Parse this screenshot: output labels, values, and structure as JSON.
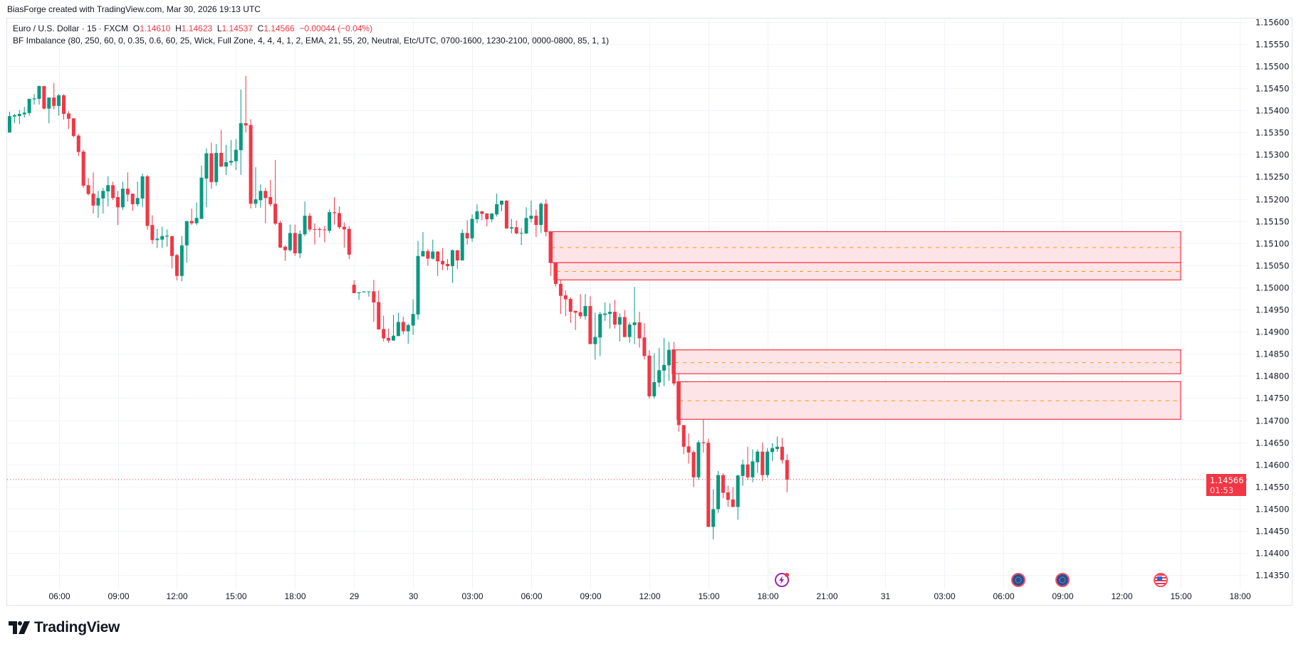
{
  "header": {
    "credit": "BiasForge created with TradingView.com, Mar 30, 2026 19:13 UTC"
  },
  "legend": {
    "symbol": "Euro / U.S. Dollar · 15 · FXCM",
    "open_label": "O",
    "open": "1.14610",
    "high_label": "H",
    "high": "1.14623",
    "low_label": "L",
    "low": "1.14537",
    "close_label": "C",
    "close": "1.14566",
    "change": "−0.00044 (−0.04%)",
    "indicator": "BF Imbalance (80, 250, 60, 0, 0.35, 0.6, 60, 25, Wick, Full Zone, 4, 4, 4, 1, 2, EMA, 21, 55, 20, Neutral, Etc/UTC, 0700-1600, 1230-2100, 0000-0800, 85, 1, 1)"
  },
  "price_tag": {
    "price": "1.14566",
    "countdown": "01:53"
  },
  "logo": {
    "text": "TradingView"
  },
  "colors": {
    "up": "#089981",
    "down": "#f23645",
    "zone_fill": "#fde1e3",
    "zone_border": "#f23645",
    "zone_mid": "#ff9800",
    "grid": "#f0f3fa",
    "event_purple": "#9c27b0"
  },
  "events": [
    {
      "icon": "lightning-icon",
      "bar": 157
    },
    {
      "icon": "eu-flag-icon",
      "bar": 205
    },
    {
      "icon": "eu-flag-icon",
      "bar": 214
    },
    {
      "icon": "us-flag-icon",
      "bar": 234
    }
  ],
  "chart_data": {
    "type": "candlestick",
    "interval": "15",
    "ylim": [
      1.1433,
      1.1561
    ],
    "grid": true,
    "price_ticks": [
      "1.15600",
      "1.15550",
      "1.15500",
      "1.15450",
      "1.15400",
      "1.15350",
      "1.15300",
      "1.15250",
      "1.15200",
      "1.15150",
      "1.15100",
      "1.15050",
      "1.15000",
      "1.14950",
      "1.14900",
      "1.14850",
      "1.14800",
      "1.14750",
      "1.14700",
      "1.14650",
      "1.14600",
      "1.14550",
      "1.14500",
      "1.14450",
      "1.14400",
      "1.14350"
    ],
    "time_ticks": [
      {
        "label": "06:00",
        "bar": 10
      },
      {
        "label": "09:00",
        "bar": 22
      },
      {
        "label": "12:00",
        "bar": 34
      },
      {
        "label": "15:00",
        "bar": 46
      },
      {
        "label": "18:00",
        "bar": 58
      },
      {
        "label": "29",
        "bar": 70
      },
      {
        "label": "30",
        "bar": 82
      },
      {
        "label": "03:00",
        "bar": 94
      },
      {
        "label": "06:00",
        "bar": 106
      },
      {
        "label": "09:00",
        "bar": 118
      },
      {
        "label": "12:00",
        "bar": 130
      },
      {
        "label": "15:00",
        "bar": 142
      },
      {
        "label": "18:00",
        "bar": 154
      },
      {
        "label": "21:00",
        "bar": 166
      },
      {
        "label": "31",
        "bar": 178
      },
      {
        "label": "03:00",
        "bar": 190
      },
      {
        "label": "06:00",
        "bar": 202
      },
      {
        "label": "09:00",
        "bar": 214
      },
      {
        "label": "12:00",
        "bar": 226
      },
      {
        "label": "15:00",
        "bar": 238
      },
      {
        "label": "18:00",
        "bar": 250
      }
    ],
    "last_price": 1.14566,
    "zones": [
      {
        "from_bar": 110,
        "to_bar": 238,
        "top": 1.15126,
        "bottom": 1.15056,
        "mid": 1.1509
      },
      {
        "from_bar": 111,
        "to_bar": 238,
        "top": 1.15056,
        "bottom": 1.15017,
        "mid": 1.15036
      },
      {
        "from_bar": 135,
        "to_bar": 238,
        "top": 1.14859,
        "bottom": 1.14805,
        "mid": 1.1483
      },
      {
        "from_bar": 136,
        "to_bar": 238,
        "top": 1.14787,
        "bottom": 1.14702,
        "mid": 1.14744
      }
    ],
    "ohlc": [
      [
        1.1535,
        1.15397,
        1.1535,
        1.15387
      ],
      [
        1.15386,
        1.15392,
        1.15371,
        1.15389
      ],
      [
        1.15387,
        1.15401,
        1.15369,
        1.15392
      ],
      [
        1.15391,
        1.15408,
        1.15384,
        1.15395
      ],
      [
        1.15394,
        1.15426,
        1.15388,
        1.15426
      ],
      [
        1.15425,
        1.15437,
        1.15413,
        1.15427
      ],
      [
        1.15426,
        1.15456,
        1.15413,
        1.15455
      ],
      [
        1.15455,
        1.15455,
        1.15402,
        1.15404
      ],
      [
        1.15404,
        1.15429,
        1.15371,
        1.15429
      ],
      [
        1.15429,
        1.15462,
        1.15402,
        1.1541
      ],
      [
        1.1541,
        1.15437,
        1.15388,
        1.15434
      ],
      [
        1.15434,
        1.15437,
        1.15379,
        1.15392
      ],
      [
        1.15393,
        1.15398,
        1.15358,
        1.15381
      ],
      [
        1.15382,
        1.15382,
        1.15339,
        1.15342
      ],
      [
        1.15343,
        1.15347,
        1.15297,
        1.15306
      ],
      [
        1.15307,
        1.15311,
        1.15225,
        1.1523
      ],
      [
        1.15231,
        1.15247,
        1.15208,
        1.15211
      ],
      [
        1.15212,
        1.1526,
        1.15167,
        1.15185
      ],
      [
        1.15185,
        1.15218,
        1.15157,
        1.15202
      ],
      [
        1.15201,
        1.15225,
        1.15167,
        1.15218
      ],
      [
        1.15217,
        1.15251,
        1.15183,
        1.15231
      ],
      [
        1.15231,
        1.15239,
        1.15197,
        1.15202
      ],
      [
        1.15204,
        1.15218,
        1.15141,
        1.15181
      ],
      [
        1.15181,
        1.15239,
        1.15175,
        1.15223
      ],
      [
        1.15223,
        1.1526,
        1.15194,
        1.1521
      ],
      [
        1.15212,
        1.15212,
        1.15173,
        1.15188
      ],
      [
        1.15188,
        1.15239,
        1.15183,
        1.15202
      ],
      [
        1.15201,
        1.15257,
        1.15181,
        1.15251
      ],
      [
        1.15251,
        1.15254,
        1.15131,
        1.15139
      ],
      [
        1.15141,
        1.15163,
        1.15098,
        1.15107
      ],
      [
        1.15107,
        1.15132,
        1.15089,
        1.1511
      ],
      [
        1.15108,
        1.15137,
        1.15089,
        1.15116
      ],
      [
        1.15115,
        1.15131,
        1.15092,
        1.15117
      ],
      [
        1.15116,
        1.15116,
        1.15043,
        1.15071
      ],
      [
        1.15073,
        1.15076,
        1.15016,
        1.15026
      ],
      [
        1.15026,
        1.15116,
        1.15014,
        1.15095
      ],
      [
        1.15095,
        1.1515,
        1.15056,
        1.1515
      ],
      [
        1.1515,
        1.15178,
        1.15141,
        1.15145
      ],
      [
        1.15145,
        1.15192,
        1.15141,
        1.15157
      ],
      [
        1.15155,
        1.15275,
        1.15154,
        1.15248
      ],
      [
        1.15246,
        1.15314,
        1.15181,
        1.15303
      ],
      [
        1.15303,
        1.15327,
        1.15223,
        1.15238
      ],
      [
        1.15238,
        1.15324,
        1.1523,
        1.15304
      ],
      [
        1.15304,
        1.15356,
        1.15273,
        1.15273
      ],
      [
        1.15273,
        1.15322,
        1.15254,
        1.15283
      ],
      [
        1.15282,
        1.15333,
        1.15275,
        1.15286
      ],
      [
        1.15285,
        1.15335,
        1.15265,
        1.15311
      ],
      [
        1.1531,
        1.15447,
        1.15254,
        1.15371
      ],
      [
        1.15371,
        1.15478,
        1.1535,
        1.15366
      ],
      [
        1.15367,
        1.1538,
        1.15178,
        1.15189
      ],
      [
        1.15189,
        1.15272,
        1.1518,
        1.15199
      ],
      [
        1.15197,
        1.15233,
        1.1518,
        1.15218
      ],
      [
        1.15218,
        1.15225,
        1.15145,
        1.15202
      ],
      [
        1.15204,
        1.15243,
        1.15183,
        1.15188
      ],
      [
        1.15189,
        1.15288,
        1.15141,
        1.15144
      ],
      [
        1.15146,
        1.1515,
        1.15089,
        1.1509
      ],
      [
        1.15092,
        1.15095,
        1.1506,
        1.15084
      ],
      [
        1.15084,
        1.15142,
        1.15081,
        1.15123
      ],
      [
        1.15123,
        1.15142,
        1.15071,
        1.15077
      ],
      [
        1.15077,
        1.15129,
        1.15066,
        1.15121
      ],
      [
        1.1512,
        1.15194,
        1.15116,
        1.15162
      ],
      [
        1.15162,
        1.15168,
        1.15126,
        1.15131
      ],
      [
        1.15132,
        1.15145,
        1.15097,
        1.15131
      ],
      [
        1.15132,
        1.15136,
        1.15113,
        1.1513
      ],
      [
        1.15131,
        1.15139,
        1.15102,
        1.1513
      ],
      [
        1.15128,
        1.15176,
        1.15123,
        1.1517
      ],
      [
        1.1517,
        1.15204,
        1.15142,
        1.15168
      ],
      [
        1.15168,
        1.15183,
        1.15132,
        1.15136
      ],
      [
        1.15137,
        1.15147,
        1.1509,
        1.15131
      ],
      [
        1.15132,
        1.15139,
        1.15064,
        1.15074
      ],
      [
        1.15006,
        1.15016,
        1.14987,
        1.14987
      ],
      [
        1.14987,
        1.14989,
        1.14972,
        1.14989
      ],
      [
        1.14989,
        1.14991,
        1.14989,
        1.14991
      ],
      [
        1.1499,
        1.14991,
        1.14979,
        1.14991
      ],
      [
        1.14991,
        1.15017,
        1.14922,
        1.14966
      ],
      [
        1.14967,
        1.14993,
        1.14905,
        1.14905
      ],
      [
        1.14906,
        1.14936,
        1.14878,
        1.14885
      ],
      [
        1.14886,
        1.14907,
        1.14875,
        1.1488
      ],
      [
        1.1488,
        1.14938,
        1.1488,
        1.14891
      ],
      [
        1.1489,
        1.14943,
        1.1489,
        1.14922
      ],
      [
        1.14922,
        1.14934,
        1.14894,
        1.14901
      ],
      [
        1.14901,
        1.14918,
        1.14873,
        1.14915
      ],
      [
        1.14914,
        1.14973,
        1.14893,
        1.1494
      ],
      [
        1.14939,
        1.15105,
        1.14927,
        1.15071
      ],
      [
        1.1507,
        1.15125,
        1.1507,
        1.15082
      ],
      [
        1.15082,
        1.15087,
        1.15049,
        1.15065
      ],
      [
        1.15065,
        1.15108,
        1.15063,
        1.15081
      ],
      [
        1.15081,
        1.15082,
        1.15026,
        1.15059
      ],
      [
        1.1506,
        1.15089,
        1.15039,
        1.15052
      ],
      [
        1.15053,
        1.15064,
        1.15039,
        1.15048
      ],
      [
        1.15048,
        1.15086,
        1.1501,
        1.15084
      ],
      [
        1.15084,
        1.15084,
        1.15042,
        1.15061
      ],
      [
        1.15061,
        1.15131,
        1.15061,
        1.15123
      ],
      [
        1.15123,
        1.15152,
        1.15097,
        1.15111
      ],
      [
        1.15111,
        1.15165,
        1.15103,
        1.15155
      ],
      [
        1.15154,
        1.15188,
        1.15145,
        1.15172
      ],
      [
        1.15172,
        1.15173,
        1.15152,
        1.15166
      ],
      [
        1.15167,
        1.15168,
        1.15138,
        1.15154
      ],
      [
        1.15154,
        1.15168,
        1.15147,
        1.15167
      ],
      [
        1.15165,
        1.15212,
        1.1516,
        1.15188
      ],
      [
        1.15187,
        1.15196,
        1.15172,
        1.15196
      ],
      [
        1.15196,
        1.15197,
        1.15133,
        1.15133
      ],
      [
        1.15133,
        1.15155,
        1.15122,
        1.15136
      ],
      [
        1.15136,
        1.15151,
        1.1512,
        1.15122
      ],
      [
        1.15122,
        1.15134,
        1.15096,
        1.15123
      ],
      [
        1.15122,
        1.15181,
        1.1512,
        1.15157
      ],
      [
        1.15155,
        1.15196,
        1.15147,
        1.15162
      ],
      [
        1.15162,
        1.15176,
        1.15114,
        1.15141
      ],
      [
        1.15141,
        1.15192,
        1.15123,
        1.15189
      ],
      [
        1.15189,
        1.15199,
        1.15115,
        1.15125
      ],
      [
        1.15126,
        1.15126,
        1.15026,
        1.15056
      ],
      [
        1.15056,
        1.15056,
        1.15002,
        1.15008
      ],
      [
        1.15008,
        1.15016,
        1.1494,
        1.14981
      ],
      [
        1.14982,
        1.14993,
        1.14935,
        1.14973
      ],
      [
        1.14974,
        1.14978,
        1.1492,
        1.14945
      ],
      [
        1.14947,
        1.14947,
        1.14904,
        1.14943
      ],
      [
        1.14944,
        1.14985,
        1.14929,
        1.14935
      ],
      [
        1.14935,
        1.14985,
        1.14927,
        1.14958
      ],
      [
        1.14958,
        1.1498,
        1.14872,
        1.14872
      ],
      [
        1.14872,
        1.14943,
        1.14837,
        1.14888
      ],
      [
        1.14887,
        1.14945,
        1.14845,
        1.1494
      ],
      [
        1.14938,
        1.14966,
        1.14924,
        1.14941
      ],
      [
        1.1494,
        1.14964,
        1.14907,
        1.14945
      ],
      [
        1.14945,
        1.14972,
        1.14907,
        1.14916
      ],
      [
        1.14916,
        1.14941,
        1.14878,
        1.14933
      ],
      [
        1.14933,
        1.14949,
        1.14887,
        1.14888
      ],
      [
        1.14888,
        1.14921,
        1.14875,
        1.14916
      ],
      [
        1.14915,
        1.15001,
        1.14872,
        1.14921
      ],
      [
        1.14921,
        1.14945,
        1.14864,
        1.14885
      ],
      [
        1.14887,
        1.14919,
        1.14837,
        1.14845
      ],
      [
        1.14846,
        1.14858,
        1.14749,
        1.14754
      ],
      [
        1.14754,
        1.14851,
        1.14749,
        1.14786
      ],
      [
        1.14785,
        1.14863,
        1.14775,
        1.14813
      ],
      [
        1.14812,
        1.14886,
        1.14777,
        1.14825
      ],
      [
        1.14824,
        1.14877,
        1.14789,
        1.14859
      ],
      [
        1.14859,
        1.14877,
        1.14778,
        1.14783
      ],
      [
        1.14787,
        1.14806,
        1.14674,
        1.14689
      ],
      [
        1.14689,
        1.14689,
        1.14623,
        1.1464
      ],
      [
        1.14641,
        1.1467,
        1.14602,
        1.14627
      ],
      [
        1.14628,
        1.14632,
        1.14549,
        1.14571
      ],
      [
        1.14571,
        1.14655,
        1.14565,
        1.1465
      ],
      [
        1.1465,
        1.14702,
        1.14627,
        1.14648
      ],
      [
        1.14649,
        1.14658,
        1.14459,
        1.14459
      ],
      [
        1.14459,
        1.14544,
        1.14431,
        1.14499
      ],
      [
        1.14499,
        1.14585,
        1.14491,
        1.14576
      ],
      [
        1.14576,
        1.1458,
        1.14524,
        1.14536
      ],
      [
        1.14537,
        1.14552,
        1.14504,
        1.1452
      ],
      [
        1.14521,
        1.14549,
        1.14504,
        1.14504
      ],
      [
        1.14504,
        1.14577,
        1.14475,
        1.14575
      ],
      [
        1.14574,
        1.14611,
        1.14552,
        1.146
      ],
      [
        1.146,
        1.1464,
        1.14565,
        1.14571
      ],
      [
        1.14571,
        1.14634,
        1.1456,
        1.14607
      ],
      [
        1.14605,
        1.14634,
        1.14581,
        1.14629
      ],
      [
        1.14629,
        1.1465,
        1.14563,
        1.14576
      ],
      [
        1.14576,
        1.14637,
        1.1457,
        1.14629
      ],
      [
        1.14628,
        1.14648,
        1.14608,
        1.14637
      ],
      [
        1.14635,
        1.14663,
        1.14629,
        1.1464
      ],
      [
        1.1464,
        1.1466,
        1.14602,
        1.1461
      ],
      [
        1.1461,
        1.14623,
        1.14537,
        1.14566
      ]
    ]
  }
}
